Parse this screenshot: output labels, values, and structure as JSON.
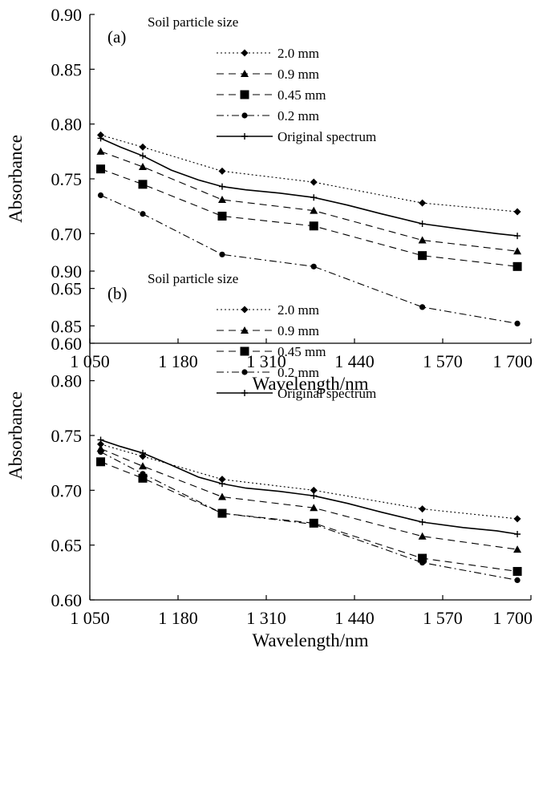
{
  "chart_data": [
    {
      "type": "line",
      "panel_label": "(a)",
      "legend_title": "Soil particle size",
      "legend_position": "top-center",
      "xlabel": "Wavelength/nm",
      "ylabel": "Absorbance",
      "xlim": [
        1050,
        1700
      ],
      "ylim": [
        0.6,
        0.9
      ],
      "xticks": [
        1050,
        1180,
        1310,
        1440,
        1570,
        1700
      ],
      "xtick_labels": [
        "1 050",
        "1 180",
        "1 310",
        "1 440",
        "1 570",
        "1 700"
      ],
      "yticks": [
        0.6,
        0.65,
        0.7,
        0.75,
        0.8,
        0.85,
        0.9
      ],
      "ytick_labels": [
        "0.60",
        "0.65",
        "0.70",
        "0.75",
        "0.80",
        "0.85",
        "0.90"
      ],
      "grid": false,
      "x": [
        1066,
        1128,
        1245,
        1380,
        1540,
        1680
      ],
      "series": [
        {
          "name": "2.0 mm",
          "marker": "diamond",
          "dash": "dotted",
          "values": [
            0.79,
            0.779,
            0.757,
            0.747,
            0.728,
            0.72
          ]
        },
        {
          "name": "0.9 mm",
          "marker": "triangle",
          "dash": "dashed",
          "values": [
            0.775,
            0.761,
            0.731,
            0.721,
            0.694,
            0.684
          ]
        },
        {
          "name": "0.45 mm",
          "marker": "square",
          "dash": "dashed",
          "values": [
            0.759,
            0.745,
            0.716,
            0.707,
            0.68,
            0.67
          ]
        },
        {
          "name": "0.2 mm",
          "marker": "circle",
          "dash": "dash-dot",
          "values": [
            0.735,
            0.718,
            0.681,
            0.67,
            0.633,
            0.618
          ]
        },
        {
          "name": "Original spectrum",
          "marker": "plus",
          "dash": "solid",
          "x": [
            1066,
            1095,
            1128,
            1170,
            1210,
            1245,
            1280,
            1330,
            1380,
            1430,
            1480,
            1540,
            1600,
            1650,
            1680
          ],
          "values": [
            0.787,
            0.779,
            0.771,
            0.758,
            0.749,
            0.743,
            0.74,
            0.737,
            0.733,
            0.726,
            0.718,
            0.709,
            0.704,
            0.7,
            0.698
          ]
        }
      ]
    },
    {
      "type": "line",
      "panel_label": "(b)",
      "legend_title": "Soil particle size",
      "legend_position": "top-center",
      "xlabel": "Wavelength/nm",
      "ylabel": "Absorbance",
      "xlim": [
        1050,
        1700
      ],
      "ylim": [
        0.6,
        0.9
      ],
      "xticks": [
        1050,
        1180,
        1310,
        1440,
        1570,
        1700
      ],
      "xtick_labels": [
        "1 050",
        "1 180",
        "1 310",
        "1 440",
        "1 570",
        "1 700"
      ],
      "yticks": [
        0.6,
        0.65,
        0.7,
        0.75,
        0.8,
        0.85,
        0.9
      ],
      "ytick_labels": [
        "0.60",
        "0.65",
        "0.70",
        "0.75",
        "0.80",
        "0.85",
        "0.90"
      ],
      "grid": false,
      "x": [
        1066,
        1128,
        1245,
        1380,
        1540,
        1680
      ],
      "series": [
        {
          "name": "2.0 mm",
          "marker": "diamond",
          "dash": "dotted",
          "values": [
            0.742,
            0.731,
            0.71,
            0.7,
            0.683,
            0.674
          ]
        },
        {
          "name": "0.9 mm",
          "marker": "triangle",
          "dash": "dashed",
          "values": [
            0.738,
            0.722,
            0.694,
            0.684,
            0.658,
            0.646
          ]
        },
        {
          "name": "0.45 mm",
          "marker": "square",
          "dash": "dashed",
          "values": [
            0.726,
            0.711,
            0.679,
            0.67,
            0.638,
            0.626
          ]
        },
        {
          "name": "0.2 mm",
          "marker": "circle",
          "dash": "dash-dot",
          "values": [
            0.735,
            0.715,
            0.679,
            0.669,
            0.634,
            0.618
          ]
        },
        {
          "name": "Original spectrum",
          "marker": "plus",
          "dash": "solid",
          "x": [
            1066,
            1095,
            1128,
            1170,
            1210,
            1245,
            1280,
            1330,
            1380,
            1430,
            1480,
            1540,
            1600,
            1650,
            1680
          ],
          "values": [
            0.746,
            0.74,
            0.734,
            0.723,
            0.712,
            0.706,
            0.702,
            0.699,
            0.695,
            0.688,
            0.68,
            0.671,
            0.666,
            0.663,
            0.66
          ]
        }
      ]
    }
  ]
}
